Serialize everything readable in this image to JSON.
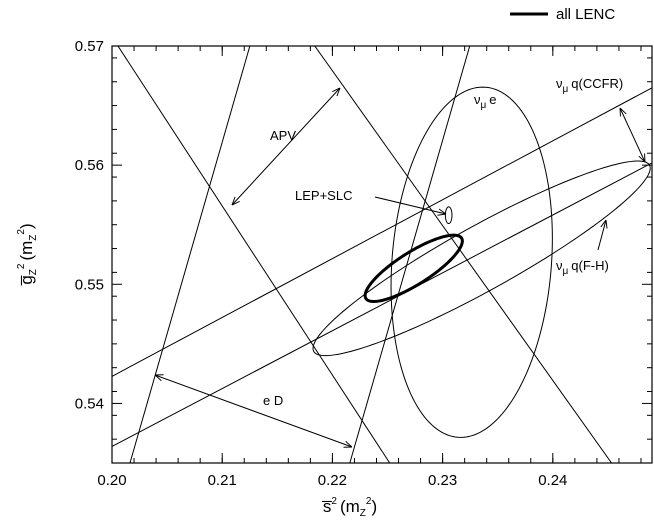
{
  "chart_data": {
    "type": "contour",
    "xlim": [
      0.2,
      0.249
    ],
    "ylim": [
      0.535,
      0.57
    ],
    "xticks": [
      {
        "value": 0.2,
        "label": "0.20"
      },
      0.21,
      0.22,
      0.23,
      0.24
    ],
    "yticks": [
      0.54,
      0.55,
      0.56,
      0.57
    ],
    "minor_step": {
      "x": 0.002,
      "y": 0.002
    },
    "xlabel": [
      "s̅",
      "2",
      "(m",
      "Z",
      "2",
      ")"
    ],
    "ylabel": [
      "g̅",
      "Z",
      "2",
      "(m",
      "Z",
      "2",
      ")"
    ],
    "legend": {
      "name": "all LENC"
    },
    "annotations": {
      "apv": "APV",
      "lep": "LEP+SLC",
      "ed": "e D",
      "nue": [
        "ν",
        "μ",
        "e"
      ],
      "ccfr": [
        "ν",
        "μ",
        "q(CCFR)"
      ],
      "fh": [
        "ν",
        "μ",
        "q(F-H)"
      ]
    },
    "lines": [
      {
        "x": [
          0.20054,
          0.2252
        ],
        "y": [
          0.57,
          0.535
        ]
      },
      {
        "x": [
          0.2184,
          0.24533
        ],
        "y": [
          0.57,
          0.535
        ]
      },
      {
        "x": [
          0.20163,
          0.21251
        ],
        "y": [
          0.535,
          0.57
        ]
      },
      {
        "x": [
          0.22158,
          0.23246
        ],
        "y": [
          0.535,
          0.57
        ]
      },
      {
        "x": [
          0.2,
          0.24896
        ],
        "y": [
          0.54227,
          0.56647
        ]
      },
      {
        "x": [
          0.2,
          0.24896
        ],
        "y": [
          0.53639,
          0.56017
        ]
      }
    ],
    "ellipses": [
      {
        "center": [
          0.23264,
          0.55185
        ],
        "u": [
          0.00725,
          0
        ],
        "v": [
          0.001,
          0.0147
        ],
        "width": 1
      },
      {
        "center": [
          0.23354,
          0.55218
        ],
        "u": [
          0.01523,
          0.00782
        ],
        "v": [
          0.00145,
          -0.00235
        ],
        "width": 1
      },
      {
        "center": [
          0.22738,
          0.55134
        ],
        "u": [
          0.00435,
          0.00252
        ],
        "v": [
          0.00073,
          -0.00118
        ],
        "width": 3
      },
      {
        "center": [
          0.23055,
          0.5558
        ],
        "u": [
          0.0003,
          0
        ],
        "v": [
          0,
          0.0007
        ],
        "width": 1
      }
    ]
  }
}
